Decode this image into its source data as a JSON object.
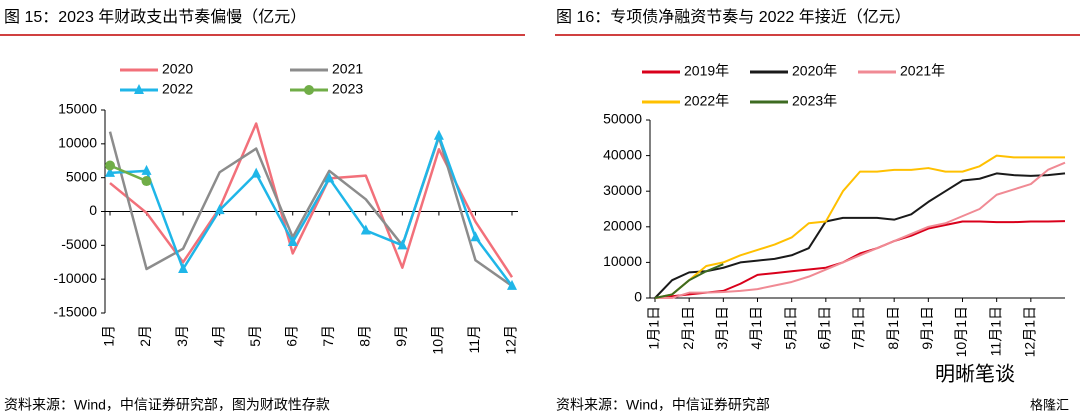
{
  "chart_data": [
    {
      "type": "line",
      "title": "图 15：2023 年财政支出节奏偏慢（亿元）",
      "source": "资料来源：Wind，中信证券研究部，图为财政性存款",
      "categories": [
        "1月",
        "2月",
        "3月",
        "4月",
        "5月",
        "6月",
        "7月",
        "8月",
        "9月",
        "10月",
        "11月",
        "12月"
      ],
      "series": [
        {
          "name": "2020",
          "color": "#f2707a",
          "values": [
            4200,
            -200,
            -7500,
            500,
            13000,
            -6200,
            4900,
            5300,
            -8300,
            9200,
            -1500,
            -9700
          ]
        },
        {
          "name": "2021",
          "color": "#8c8c8c",
          "values": [
            11800,
            -8500,
            -5500,
            5800,
            9300,
            -3800,
            6000,
            1800,
            -5000,
            11000,
            -7200,
            -11000
          ]
        },
        {
          "name": "2022",
          "color": "#1fb6e8",
          "marker": "triangle",
          "values": [
            5700,
            6000,
            -8500,
            200,
            5600,
            -4500,
            4900,
            -2800,
            -5000,
            11200,
            -3800,
            -11000
          ]
        },
        {
          "name": "2023",
          "color": "#70ad47",
          "marker": "circle",
          "values": [
            6800,
            4500,
            null,
            null,
            null,
            null,
            null,
            null,
            null,
            null,
            null,
            null
          ]
        }
      ],
      "ylim": [
        -15000,
        15000
      ],
      "yticks": [
        -15000,
        -10000,
        -5000,
        0,
        5000,
        10000,
        15000
      ]
    },
    {
      "type": "line",
      "title": "图 16：专项债净融资节奏与 2022 年接近（亿元）",
      "source": "资料来源：Wind，中信证券研究部",
      "categories": [
        "1月1日",
        null,
        "2月1日",
        null,
        "3月1日",
        null,
        "4月1日",
        null,
        "5月1日",
        null,
        "6月1日",
        null,
        "7月1日",
        null,
        "8月1日",
        null,
        "9月1日",
        null,
        "10月1日",
        null,
        "11月1日",
        null,
        "12月1日",
        null,
        null
      ],
      "series": [
        {
          "name": "2019年",
          "color": "#d9001b",
          "values": [
            0,
            500,
            1000,
            1500,
            2000,
            4000,
            6500,
            7000,
            7500,
            8000,
            8500,
            10000,
            12500,
            14000,
            16000,
            17500,
            19500,
            20500,
            21500,
            21500,
            21300,
            21300,
            21500,
            21500,
            21600
          ]
        },
        {
          "name": "2020年",
          "color": "#1a1a1a",
          "values": [
            0,
            5000,
            7200,
            7500,
            8500,
            10000,
            10500,
            11000,
            12000,
            14000,
            21500,
            22500,
            22500,
            22500,
            22000,
            23500,
            27000,
            30000,
            33000,
            33500,
            35000,
            34500,
            34300,
            34500,
            35000
          ]
        },
        {
          "name": "2021年",
          "color": "#f08a94",
          "values": [
            0,
            0,
            1500,
            1500,
            1700,
            2000,
            2500,
            3500,
            4500,
            6000,
            8000,
            10000,
            12000,
            14000,
            16000,
            18000,
            20000,
            21000,
            23000,
            25000,
            29000,
            30500,
            32000,
            36000,
            38000
          ]
        },
        {
          "name": "2022年",
          "color": "#ffc000",
          "values": [
            0,
            1000,
            5000,
            9000,
            10000,
            12000,
            13500,
            15000,
            17000,
            21000,
            21500,
            30000,
            35500,
            35500,
            36000,
            36000,
            36500,
            35500,
            35500,
            37000,
            40000,
            39500,
            39500,
            39500,
            39500
          ]
        },
        {
          "name": "2023年",
          "color": "#3d6b21",
          "values": [
            0,
            1000,
            5000,
            7500,
            9500,
            null,
            null,
            null,
            null,
            null,
            null,
            null,
            null,
            null,
            null,
            null,
            null,
            null,
            null,
            null,
            null,
            null,
            null,
            null,
            null
          ]
        }
      ],
      "ylim": [
        0,
        50000
      ],
      "yticks": [
        0,
        10000,
        20000,
        30000,
        40000,
        50000
      ]
    }
  ],
  "watermark": "明晰笔谈",
  "corner_mark": "格隆汇"
}
